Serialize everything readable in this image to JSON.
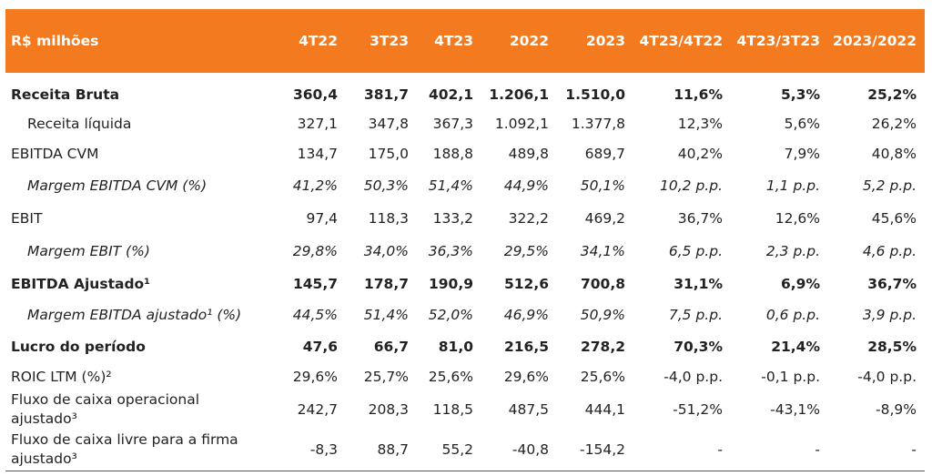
{
  "header": [
    "R$ milhões",
    "4T22",
    "3T23",
    "4T23",
    "2022",
    "2023",
    "4T23/4T22",
    "4T23/3T23",
    "2023/2022"
  ],
  "rows": [
    {
      "label": "Receita Bruta",
      "values": [
        "360,4",
        "381,7",
        "402,1",
        "1.206,1",
        "1.510,0",
        "11,6%",
        "5,3%",
        "25,2%"
      ]
    },
    {
      "label": "Receita líquida",
      "values": [
        "327,1",
        "347,8",
        "367,3",
        "1.092,1",
        "1.377,8",
        "12,3%",
        "5,6%",
        "26,2%"
      ]
    },
    {
      "label": "EBITDA CVM",
      "values": [
        "134,7",
        "175,0",
        "188,8",
        "489,8",
        "689,7",
        "40,2%",
        "7,9%",
        "40,8%"
      ]
    },
    {
      "label": "Margem EBITDA CVM (%)",
      "values": [
        "41,2%",
        "50,3%",
        "51,4%",
        "44,9%",
        "50,1%",
        "10,2 p.p.",
        "1,1 p.p.",
        "5,2 p.p."
      ]
    },
    {
      "label": "EBIT",
      "values": [
        "97,4",
        "118,3",
        "133,2",
        "322,2",
        "469,2",
        "36,7%",
        "12,6%",
        "45,6%"
      ]
    },
    {
      "label": "Margem EBIT (%)",
      "values": [
        "29,8%",
        "34,0%",
        "36,3%",
        "29,5%",
        "34,1%",
        "6,5 p.p.",
        "2,3 p.p.",
        "4,6 p.p."
      ]
    },
    {
      "label": "EBITDA Ajustado¹",
      "values": [
        "145,7",
        "178,7",
        "190,9",
        "512,6",
        "700,8",
        "31,1%",
        "6,9%",
        "36,7%"
      ]
    },
    {
      "label": "Margem EBITDA ajustado¹ (%)",
      "values": [
        "44,5%",
        "51,4%",
        "52,0%",
        "46,9%",
        "50,9%",
        "7,5 p.p.",
        "0,6 p.p.",
        "3,9 p.p."
      ]
    },
    {
      "label": "Lucro do período",
      "values": [
        "47,6",
        "66,7",
        "81,0",
        "216,5",
        "278,2",
        "70,3%",
        "21,4%",
        "28,5%"
      ]
    },
    {
      "label": "ROIC LTM (%)²",
      "values": [
        "29,6%",
        "25,7%",
        "25,6%",
        "29,6%",
        "25,6%",
        "-4,0 p.p.",
        "-0,1 p.p.",
        "-4,0 p.p."
      ]
    },
    {
      "label": "Fluxo de caixa operacional ajustado³",
      "values": [
        "242,7",
        "208,3",
        "118,5",
        "487,5",
        "444,1",
        "-51,2%",
        "-43,1%",
        "-8,9%"
      ]
    },
    {
      "label": "Fluxo de caixa livre para a firma ajustado³",
      "values": [
        "-8,3",
        "88,7",
        "55,2",
        "-40,8",
        "-154,2",
        "-",
        "-",
        "-"
      ]
    }
  ]
}
